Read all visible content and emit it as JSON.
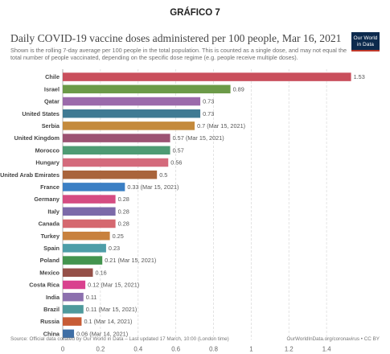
{
  "page": {
    "heading": "GRÁFICO 7",
    "logo_line1": "Our World",
    "logo_line2": "in Data"
  },
  "chart_data": {
    "type": "bar",
    "orientation": "horizontal",
    "title": "Daily COVID-19 vaccine doses administered per 100 people, Mar 16, 2021",
    "subtitle": "Shown is the rolling 7-day average per 100 people in the total population. This is counted as a single dose, and may not equal the total number of people vaccinated, depending on the specific dose regime (e.g. people receive multiple doses).",
    "xlabel": "",
    "ylabel": "",
    "xlim": [
      0,
      1.6
    ],
    "xticks": [
      0,
      0.2,
      0.4,
      0.6,
      0.8,
      1,
      1.2,
      1.4
    ],
    "grid": true,
    "categories": [
      "Chile",
      "Israel",
      "Qatar",
      "United States",
      "Serbia",
      "United Kingdom",
      "Morocco",
      "Hungary",
      "United Arab Emirates",
      "France",
      "Germany",
      "Italy",
      "Canada",
      "Turkey",
      "Spain",
      "Poland",
      "Mexico",
      "Costa Rica",
      "India",
      "Brazil",
      "Russia",
      "China"
    ],
    "values": [
      1.53,
      0.89,
      0.73,
      0.73,
      0.7,
      0.57,
      0.57,
      0.56,
      0.5,
      0.33,
      0.28,
      0.28,
      0.28,
      0.25,
      0.23,
      0.21,
      0.16,
      0.12,
      0.11,
      0.11,
      0.1,
      0.06
    ],
    "value_labels": [
      "1.53",
      "0.89",
      "0.73",
      "0.73",
      "0.7 (Mar 15, 2021)",
      "0.57 (Mar 15, 2021)",
      "0.57",
      "0.56",
      "0.5",
      "0.33 (Mar 15, 2021)",
      "0.28",
      "0.28",
      "0.28",
      "0.25",
      "0.23",
      "0.21 (Mar 15, 2021)",
      "0.16",
      "0.12 (Mar 15, 2021)",
      "0.11",
      "0.11 (Mar 15, 2021)",
      "0.1 (Mar 14, 2021)",
      "0.06 (Mar 14, 2021)"
    ],
    "colors": [
      "#c94f5c",
      "#6c9a48",
      "#9b6aab",
      "#3f7a93",
      "#c48a3c",
      "#9c5373",
      "#4e9b73",
      "#d46a7c",
      "#a9643b",
      "#3b7fc4",
      "#d54c82",
      "#7c6aa9",
      "#d5686f",
      "#c8813e",
      "#4e9ea8",
      "#43944e",
      "#955048",
      "#d9418e",
      "#8c70ae",
      "#4e9a9c",
      "#c75c36",
      "#3f6fa5"
    ]
  },
  "footer": {
    "source": "Source: Official data collated by Our World in Data – Last updated 17 March, 10:00 (London time)",
    "url": "OurWorldInData.org/coronavirus • CC BY"
  }
}
